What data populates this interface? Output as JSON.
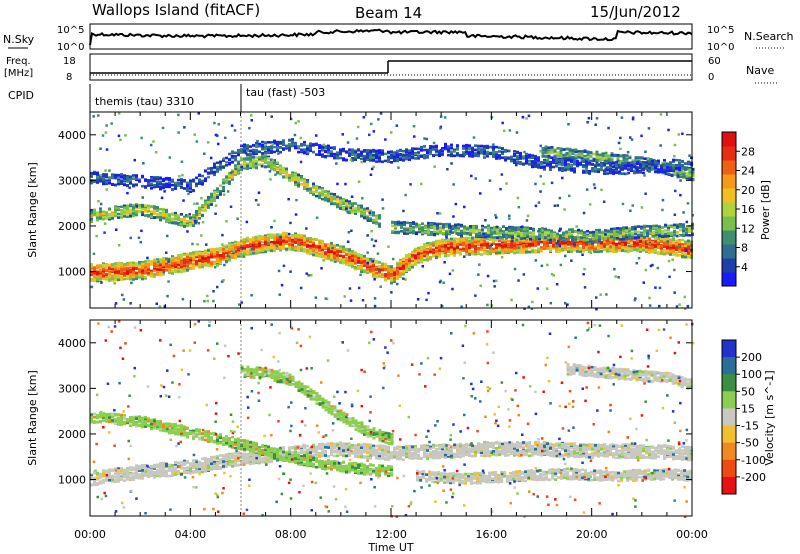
{
  "header": {
    "station": "Wallops Island (fitACF)",
    "beam": "Beam 14",
    "date": "15/Jun/2012"
  },
  "top_panels": {
    "nsky_label": "N.Sky",
    "nsearch_label": "N.Search",
    "nsky_ticks": [
      "10^5",
      "10^0"
    ],
    "nsearch_ticks": [
      "10^5",
      "10^0"
    ],
    "freq_label_1": "Freq.",
    "freq_label_2": "[MHz]",
    "freq_ticks": [
      "18",
      "8"
    ],
    "nave_label": "Nave",
    "nave_ticks": [
      "60",
      "0"
    ],
    "cpid_label": "CPID",
    "cpid_entries": [
      {
        "text": "themis (tau) 3310",
        "hour": 0.1
      },
      {
        "text": "tau (fast) -503",
        "hour": 6.05
      }
    ]
  },
  "chart_data": [
    {
      "type": "heatmap",
      "name": "power",
      "ylabel": "Slant Range [km]",
      "ylim": [
        200,
        4500
      ],
      "yticks": [
        1000,
        2000,
        3000,
        4000
      ],
      "xlim": [
        0,
        24
      ],
      "colorbar": {
        "label": "Power [dB]",
        "ticks": [
          "4",
          "8",
          "12",
          "16",
          "20",
          "24",
          "28"
        ],
        "colors": [
          "#1a1aff",
          "#1f3fa8",
          "#2f6e8f",
          "#3d8f70",
          "#78c04a",
          "#b0d23c",
          "#f0c020",
          "#f49a18",
          "#f06014",
          "#e82e10",
          "#e01010"
        ]
      },
      "bands": [
        {
          "hours": [
            0,
            2,
            4,
            5,
            6,
            7,
            8,
            9,
            10,
            11,
            12,
            13,
            14,
            16,
            18,
            20,
            22,
            24
          ],
          "ranges": [
            1000,
            1050,
            1250,
            1350,
            1550,
            1650,
            1700,
            1550,
            1400,
            1150,
            950,
            1400,
            1550,
            1600,
            1650,
            1650,
            1650,
            1500
          ],
          "level": 0.92
        },
        {
          "hours": [
            0,
            2,
            4,
            6,
            7,
            8,
            9,
            10,
            11,
            11.6
          ],
          "ranges": [
            2250,
            2400,
            2100,
            3400,
            3450,
            3100,
            2800,
            2500,
            2300,
            2100
          ],
          "level": 0.55
        },
        {
          "hours": [
            12,
            14,
            16,
            18,
            20,
            22,
            24
          ],
          "ranges": [
            2000,
            1950,
            1900,
            1850,
            1800,
            1900,
            1950
          ],
          "level": 0.45
        },
        {
          "hours": [
            18,
            20,
            22,
            24
          ],
          "ranges": [
            3650,
            3550,
            3400,
            3150
          ],
          "level": 0.42
        },
        {
          "hours": [
            0,
            4,
            6,
            8,
            10,
            12,
            14,
            16,
            18,
            20,
            22,
            24
          ],
          "ranges": [
            3100,
            2900,
            3700,
            3800,
            3600,
            3550,
            3700,
            3650,
            3400,
            3300,
            3300,
            3400
          ],
          "level": 0.2
        }
      ]
    },
    {
      "type": "heatmap",
      "name": "velocity",
      "ylabel": "Slant Range [km]",
      "ylim": [
        200,
        4500
      ],
      "yticks": [
        1000,
        2000,
        3000,
        4000
      ],
      "xlim": [
        0,
        24
      ],
      "xticks": [
        "00:00",
        "04:00",
        "08:00",
        "12:00",
        "16:00",
        "20:00",
        "00:00"
      ],
      "xlabel": "Time UT",
      "colorbar": {
        "label": "Velocity [m s^-1]",
        "ticks": [
          "200",
          "100",
          "50",
          "15",
          "-15",
          "-50",
          "-100",
          "-200"
        ],
        "colors": [
          "#2233cc",
          "#2a6e9a",
          "#3a9040",
          "#8ccf50",
          "#c8c8c0",
          "#f0c030",
          "#f08a20",
          "#f04a14",
          "#e81010"
        ]
      },
      "bands": [
        {
          "hours": [
            0,
            2,
            4,
            6,
            8,
            10,
            12,
            14,
            16,
            18,
            20,
            22,
            24
          ],
          "ranges": [
            1050,
            1200,
            1300,
            1500,
            1600,
            1700,
            1600,
            1650,
            1700,
            1700,
            1650,
            1650,
            1600
          ],
          "tone": "gray"
        },
        {
          "hours": [
            6,
            7,
            8,
            9,
            10,
            11,
            12
          ],
          "ranges": [
            3400,
            3350,
            3200,
            2800,
            2400,
            2100,
            1900
          ],
          "tone": "green"
        },
        {
          "hours": [
            0,
            2,
            4,
            6,
            8,
            10,
            12
          ],
          "ranges": [
            2400,
            2300,
            2050,
            1800,
            1500,
            1300,
            1200
          ],
          "tone": "green"
        },
        {
          "hours": [
            13,
            15,
            17,
            19,
            21,
            23,
            24
          ],
          "ranges": [
            1100,
            1050,
            1100,
            1150,
            1100,
            1150,
            1100
          ],
          "tone": "gray"
        },
        {
          "hours": [
            19,
            21,
            23,
            24
          ],
          "ranges": [
            3450,
            3350,
            3250,
            3100
          ],
          "tone": "gray"
        }
      ]
    }
  ]
}
